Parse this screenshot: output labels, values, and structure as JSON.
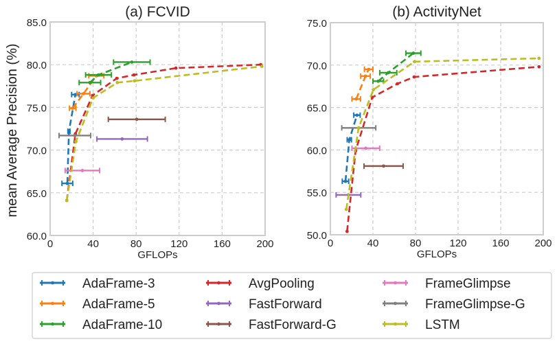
{
  "y_axis_label": "mean Average Precision (%)",
  "legend": {
    "placement": "bottom",
    "entries": [
      "AdaFrame-3",
      "AdaFrame-5",
      "AdaFrame-10",
      "AvgPooling",
      "FastForward",
      "FastForward-G",
      "FrameGlimpse",
      "FrameGlimpse-G",
      "LSTM"
    ]
  },
  "colors": {
    "AdaFrame-3": "#1f77b4",
    "AdaFrame-5": "#ff7f0e",
    "AdaFrame-10": "#2ca02c",
    "AvgPooling": "#d62728",
    "FastForward": "#9467bd",
    "FastForward-G": "#8c564b",
    "FrameGlimpse": "#e377c2",
    "FrameGlimpse-G": "#7f7f7f",
    "LSTM": "#bcbd22"
  },
  "chart_data": [
    {
      "type": "line",
      "title": "(a) FCVID",
      "xlabel": "GFLOPs",
      "ylabel": "mean Average Precision (%)",
      "xlim": [
        0,
        200
      ],
      "ylim": [
        60,
        85
      ],
      "xticks": [
        "0",
        "40",
        "80",
        "120",
        "160",
        "200"
      ],
      "yticks": [
        "60.0",
        "65.0",
        "70.0",
        "75.0",
        "80.0",
        "85.0"
      ],
      "grid": true,
      "series": [
        {
          "name": "AdaFrame-3",
          "x": [
            16,
            17.5,
            23.5
          ],
          "y": [
            66.1,
            72.2,
            76.5
          ],
          "xerr": [
            5,
            1,
            3.5
          ],
          "dashed": true
        },
        {
          "name": "AdaFrame-5",
          "x": [
            21,
            31,
            43
          ],
          "y": [
            74.9,
            76.6,
            78.7
          ],
          "xerr": [
            3,
            6,
            7
          ],
          "dashed": true
        },
        {
          "name": "AdaFrame-10",
          "x": [
            37,
            45,
            76
          ],
          "y": [
            77.9,
            78.8,
            80.3
          ],
          "xerr": [
            10,
            12,
            17
          ],
          "dashed": true
        },
        {
          "name": "AvgPooling",
          "x": [
            15.5,
            23.5,
            39.5,
            62,
            78,
            117,
            196
          ],
          "y": [
            64.1,
            71.9,
            76.4,
            78.4,
            78.8,
            79.6,
            80.0
          ],
          "dashed": true
        },
        {
          "name": "FastForward",
          "x": [
            67
          ],
          "y": [
            71.3
          ],
          "xerr": [
            23.5
          ]
        },
        {
          "name": "FastForward-G",
          "x": [
            80.6
          ],
          "y": [
            73.6
          ],
          "xerr": [
            26.5
          ]
        },
        {
          "name": "FrameGlimpse",
          "x": [
            30
          ],
          "y": [
            67.6
          ],
          "xerr": [
            16
          ]
        },
        {
          "name": "FrameGlimpse-G",
          "x": [
            23
          ],
          "y": [
            71.7
          ],
          "xerr": [
            14.7
          ]
        },
        {
          "name": "LSTM",
          "x": [
            15.5,
            24,
            40,
            62.5,
            78.5,
            197
          ],
          "y": [
            64.1,
            71.0,
            76.1,
            77.9,
            78.1,
            79.8
          ],
          "dashed": true
        }
      ]
    },
    {
      "type": "line",
      "title": "(b) ActivityNet",
      "xlabel": "GFLOPs",
      "ylabel": "mean Average Precision (%)",
      "xlim": [
        0,
        200
      ],
      "ylim": [
        50,
        75
      ],
      "xticks": [
        "0",
        "40",
        "80",
        "120",
        "160",
        "200"
      ],
      "yticks": [
        "50.0",
        "55.0",
        "60.0",
        "65.0",
        "70.0",
        "75.0"
      ],
      "grid": true,
      "series": [
        {
          "name": "AdaFrame-3",
          "x": [
            14.2,
            17.8,
            25
          ],
          "y": [
            56.3,
            61.2,
            64.1
          ],
          "xerr": [
            3,
            2,
            3
          ],
          "dashed": true
        },
        {
          "name": "AdaFrame-5",
          "x": [
            24.3,
            33,
            36
          ],
          "y": [
            66.0,
            68.7,
            69.5
          ],
          "xerr": [
            4,
            4.5,
            4
          ],
          "dashed": true
        },
        {
          "name": "AdaFrame-10",
          "x": [
            45,
            54.4,
            78
          ],
          "y": [
            68.1,
            69.1,
            71.4
          ],
          "xerr": [
            5,
            8,
            7
          ],
          "dashed": true
        },
        {
          "name": "AvgPooling",
          "x": [
            15.7,
            23.7,
            39.4,
            63,
            78.7,
            196
          ],
          "y": [
            50.4,
            59.9,
            66.2,
            67.8,
            68.6,
            69.8
          ],
          "dashed": true
        },
        {
          "name": "FastForward",
          "x": [
            17
          ],
          "y": [
            54.7
          ],
          "xerr": [
            11.6
          ]
        },
        {
          "name": "FastForward-G",
          "x": [
            50
          ],
          "y": [
            58.1
          ],
          "xerr": [
            18.4
          ]
        },
        {
          "name": "FrameGlimpse",
          "x": [
            33.3
          ],
          "y": [
            60.2
          ],
          "xerr": [
            13
          ]
        },
        {
          "name": "FrameGlimpse-G",
          "x": [
            26.7
          ],
          "y": [
            62.6
          ],
          "xerr": [
            16
          ]
        },
        {
          "name": "LSTM",
          "x": [
            15,
            26.5,
            40.4,
            79,
            196
          ],
          "y": [
            53.0,
            62.6,
            67.1,
            70.4,
            70.8
          ],
          "dashed": true
        }
      ]
    }
  ]
}
